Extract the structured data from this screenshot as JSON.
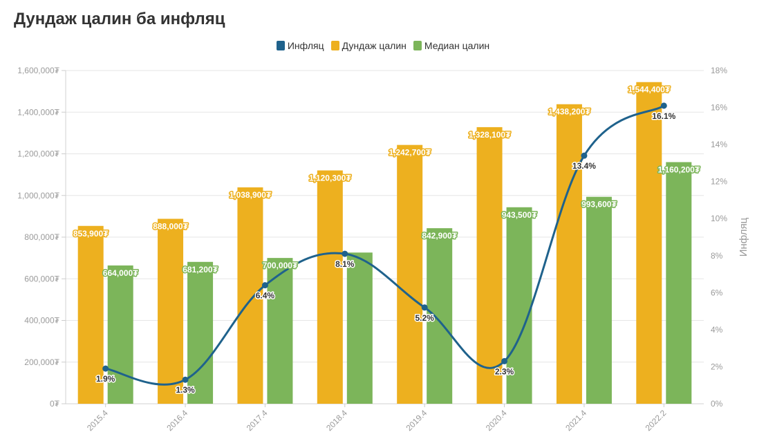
{
  "title": "Дундаж цалин ба инфляц",
  "legend": [
    {
      "label": "Инфляц",
      "color": "#1f628c"
    },
    {
      "label": "Дундаж цалин",
      "color": "#edb01f"
    },
    {
      "label": "Медиан цалин",
      "color": "#7cb55a"
    }
  ],
  "chart_data": {
    "type": "bar",
    "title": "Дундаж цалин ба инфляц",
    "categories": [
      "2015.4",
      "2016.4",
      "2017.4",
      "2018.4",
      "2019.4",
      "2020.4",
      "2021.4",
      "2022.2"
    ],
    "series": [
      {
        "name": "Дундаж цалин",
        "type": "bar",
        "axis": "left",
        "color": "#edb01f",
        "values": [
          853900,
          888000,
          1038900,
          1120300,
          1242700,
          1328100,
          1438200,
          1544400
        ],
        "labels": [
          "853,900₮",
          "888,000₮",
          "1,038,900₮",
          "1,120,300₮",
          "1,242,700₮",
          "1,328,100₮",
          "1,438,200₮",
          "1,544,400₮"
        ]
      },
      {
        "name": "Медиан цалин",
        "type": "bar",
        "axis": "left",
        "color": "#7cb55a",
        "values": [
          664000,
          681200,
          700000,
          726000,
          842900,
          943500,
          993600,
          1160200
        ],
        "labels": [
          "664,000₮",
          "681,200₮",
          "700,000₮",
          "",
          "842,900₮",
          "943,500₮",
          "993,600₮",
          "1,160,200₮"
        ]
      },
      {
        "name": "Инфляц",
        "type": "line",
        "axis": "right",
        "color": "#1f628c",
        "values": [
          1.9,
          1.3,
          6.4,
          8.1,
          5.2,
          2.3,
          13.4,
          16.1
        ],
        "labels": [
          "1.9%",
          "1.3%",
          "6.4%",
          "8.1%",
          "5.2%",
          "2.3%",
          "13.4%",
          "16.1%"
        ]
      }
    ],
    "y_left": {
      "ylim": [
        0,
        1600000
      ],
      "ticks": [
        "0₮",
        "200,000₮",
        "400,000₮",
        "600,000₮",
        "800,000₮",
        "1,000,000₮",
        "1,200,000₮",
        "1,400,000₮",
        "1,600,000₮"
      ]
    },
    "y_right": {
      "label": "Инфляц",
      "ylim": [
        0,
        18
      ],
      "ticks": [
        "0%",
        "2%",
        "4%",
        "6%",
        "8%",
        "10%",
        "12%",
        "14%",
        "16%",
        "18%"
      ]
    },
    "grid": true,
    "legend_position": "top-center"
  }
}
